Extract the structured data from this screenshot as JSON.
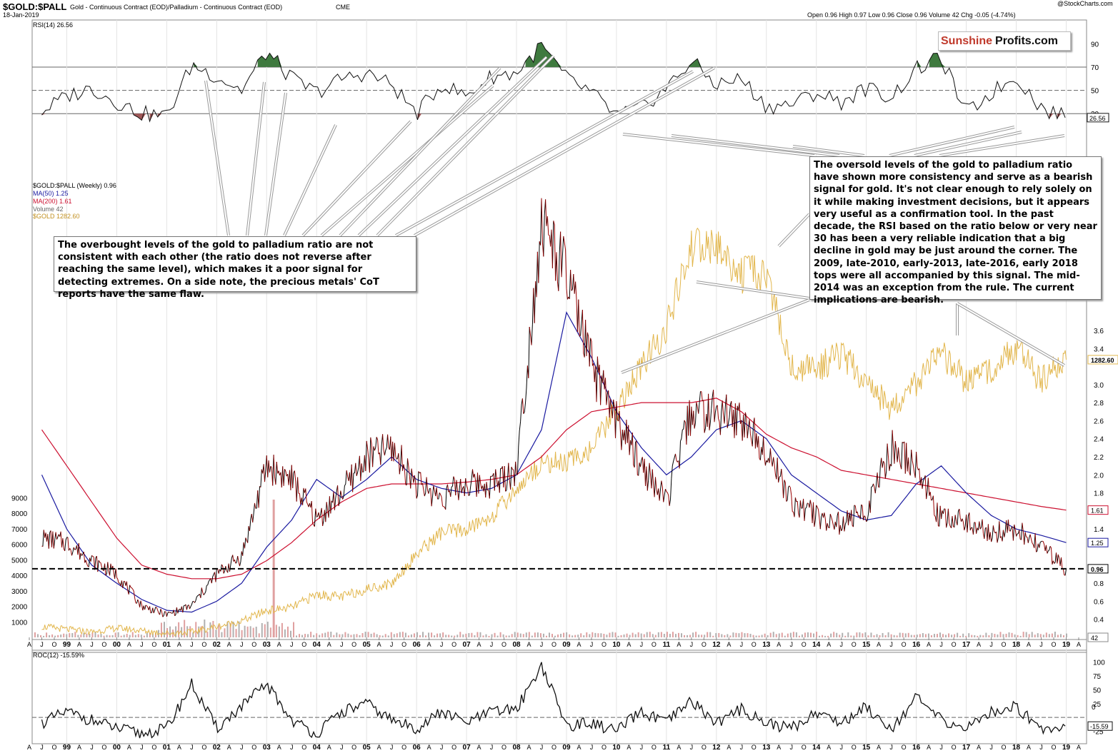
{
  "header": {
    "symbol": "$GOLD:$PALL",
    "description": "Gold - Continuous Contract (EOD)/Palladium - Continuous Contract (EOD)",
    "exchange": "CME",
    "date": "18-Jan-2019",
    "watermark": "@StockCharts.com",
    "ohlc": "Open 0.96  High 0.97  Low 0.96  Close 0.96  Volume 42  Chg -0.05 (-4.74%)"
  },
  "logo": {
    "part1": "Sunshine",
    "part2": "Profits.com"
  },
  "colors": {
    "ratio_up": "#000000",
    "ratio_down": "#990000",
    "ma50": "#1a1aa0",
    "ma200": "#cc1030",
    "gold": "#e2b64c",
    "volume": "#b0b0b0",
    "overbought_fill": "#3f7a3f",
    "oversold_fill": "#a05858"
  },
  "legend": {
    "ratio": "$GOLD:$PALL (Weekly) 0.96",
    "ma50": "MA(50) 1.25",
    "ma200": "MA(200) 1.61",
    "volume": "Volume 42",
    "gold": "$GOLD 1282.60"
  },
  "rsi_label": "RSI(14) 26.56",
  "roc_label": "ROC(12) -15.59%",
  "callouts": {
    "overbought": "The overbought levels of the gold to palladium ratio are not consistent with each other (the ratio does not reverse after reaching the same level), which makes it a poor signal for detecting extremes. On a side note, the precious metals' CoT reports have the same flaw.",
    "oversold": "The oversold levels of the gold to palladium ratio have shown more consistency and serve as a bearish signal for gold. It's not clear enough to rely solely on it while making investment decisions, but it appears very useful as a confirmation tool. In the past decade, the RSI based on the ratio below or very near 30 has been a very reliable indication that a big decline in gold may be just around the corner. The 2009, late-2010, early-2013, late-2016, early 2018 tops were all accompanied by this signal. The mid-2014 was an exception from the rule. The current implications are bearish."
  },
  "chart_data": [
    {
      "type": "line",
      "title": "RSI(14) 26.56",
      "ylim": [
        5,
        100
      ],
      "y_ticks": [
        30,
        50,
        70,
        90
      ],
      "lines": [
        30,
        50,
        70
      ],
      "last_label": "26.56",
      "x": [
        1998.5,
        1999.0,
        1999.5,
        2000.0,
        2000.5,
        2001.0,
        2001.5,
        2002.0,
        2002.5,
        2003.0,
        2003.5,
        2004.0,
        2004.5,
        2005.0,
        2005.5,
        2006.0,
        2006.5,
        2007.0,
        2007.5,
        2008.0,
        2008.5,
        2009.0,
        2009.5,
        2010.0,
        2010.5,
        2011.0,
        2011.5,
        2012.0,
        2012.5,
        2013.0,
        2013.5,
        2014.0,
        2014.5,
        2015.0,
        2015.5,
        2016.0,
        2016.5,
        2017.0,
        2017.5,
        2018.0,
        2018.5,
        2019.0
      ],
      "values": [
        32,
        45,
        52,
        40,
        30,
        28,
        72,
        62,
        50,
        83,
        60,
        48,
        60,
        65,
        55,
        30,
        55,
        45,
        62,
        65,
        88,
        60,
        48,
        28,
        35,
        52,
        75,
        55,
        60,
        36,
        38,
        48,
        40,
        52,
        44,
        68,
        78,
        30,
        48,
        62,
        35,
        26.56
      ]
    },
    {
      "type": "line",
      "title": "$GOLD:$PALL (Weekly) 0.96",
      "ylim": [
        0.2,
        5.6
      ],
      "y_ticks": [
        0.4,
        0.6,
        0.8,
        1.0,
        1.2,
        1.4,
        1.6,
        1.8,
        2.0,
        2.2,
        2.4,
        2.6,
        2.8,
        3.0,
        3.2,
        3.4,
        3.6
      ],
      "y_labels_left": [
        1000,
        2000,
        3000,
        4000,
        5000,
        6000,
        7000,
        8000,
        9000
      ],
      "x_tick_labels": [
        "A",
        "J",
        "O",
        "99",
        "A",
        "J",
        "O",
        "00",
        "A",
        "J",
        "O",
        "01",
        "A",
        "J",
        "O",
        "02",
        "A",
        "J",
        "O",
        "03",
        "A",
        "J",
        "O",
        "04",
        "A",
        "J",
        "O",
        "05",
        "A",
        "J",
        "O",
        "06",
        "A",
        "J",
        "O",
        "07",
        "A",
        "J",
        "O",
        "08",
        "A",
        "J",
        "O",
        "09",
        "A",
        "J",
        "O",
        "10",
        "A",
        "J",
        "O",
        "11",
        "A",
        "J",
        "O",
        "12",
        "A",
        "J",
        "O",
        "13",
        "A",
        "J",
        "O",
        "14",
        "A",
        "J",
        "O",
        "15",
        "A",
        "J",
        "O",
        "16",
        "A",
        "J",
        "O",
        "17",
        "A",
        "J",
        "O",
        "18",
        "A",
        "J",
        "O",
        "19",
        "A"
      ],
      "reference_line": 0.96,
      "last_labels": {
        "gold": "1282.60",
        "ma200": "1.61",
        "ma50": "1.25",
        "ratio": "0.96",
        "volume": "42"
      },
      "x": [
        1998.5,
        1999.0,
        1999.5,
        2000.0,
        2000.5,
        2001.0,
        2001.5,
        2002.0,
        2002.5,
        2003.0,
        2003.5,
        2004.0,
        2004.5,
        2005.0,
        2005.5,
        2006.0,
        2006.5,
        2007.0,
        2007.5,
        2008.0,
        2008.5,
        2009.0,
        2009.5,
        2010.0,
        2010.5,
        2011.0,
        2011.5,
        2012.0,
        2012.5,
        2013.0,
        2013.5,
        2014.0,
        2014.5,
        2015.0,
        2015.5,
        2016.0,
        2016.5,
        2017.0,
        2017.5,
        2018.0,
        2018.5,
        2019.0
      ],
      "series": [
        {
          "name": "$GOLD:$PALL",
          "values": [
            1.3,
            1.25,
            1.05,
            0.9,
            0.55,
            0.45,
            0.55,
            0.9,
            1.1,
            2.1,
            1.95,
            1.5,
            1.8,
            2.2,
            2.3,
            1.9,
            1.75,
            1.9,
            1.9,
            2.05,
            4.8,
            4.2,
            3.2,
            2.6,
            2.1,
            1.7,
            2.7,
            2.7,
            2.6,
            2.3,
            1.7,
            1.55,
            1.45,
            1.6,
            2.3,
            2.1,
            1.5,
            1.5,
            1.35,
            1.4,
            1.2,
            0.96
          ]
        },
        {
          "name": "MA(50)",
          "values": [
            2.0,
            1.4,
            1.0,
            0.8,
            0.62,
            0.5,
            0.48,
            0.6,
            0.8,
            1.2,
            1.5,
            1.95,
            1.75,
            1.95,
            2.2,
            1.95,
            1.85,
            1.8,
            1.85,
            2.0,
            2.5,
            3.8,
            3.3,
            2.7,
            2.3,
            2.0,
            2.2,
            2.5,
            2.6,
            2.4,
            2.0,
            1.8,
            1.6,
            1.5,
            1.55,
            1.9,
            2.1,
            1.8,
            1.55,
            1.4,
            1.33,
            1.25
          ]
        },
        {
          "name": "MA(200)",
          "values": [
            2.5,
            2.1,
            1.7,
            1.3,
            1.0,
            0.9,
            0.85,
            0.85,
            0.9,
            1.05,
            1.25,
            1.5,
            1.7,
            1.85,
            1.9,
            1.9,
            1.9,
            1.92,
            1.95,
            2.0,
            2.2,
            2.5,
            2.7,
            2.75,
            2.8,
            2.8,
            2.8,
            2.85,
            2.7,
            2.45,
            2.3,
            2.2,
            2.05,
            2.0,
            1.95,
            1.9,
            1.85,
            1.8,
            1.75,
            1.7,
            1.65,
            1.61
          ]
        }
      ],
      "gold_overlay": {
        "name": "$GOLD",
        "values": [
          290,
          280,
          270,
          285,
          275,
          265,
          270,
          290,
          310,
          350,
          360,
          410,
          400,
          430,
          450,
          560,
          640,
          650,
          700,
          800,
          900,
          900,
          950,
          1100,
          1250,
          1400,
          1700,
          1700,
          1600,
          1600,
          1250,
          1250,
          1300,
          1200,
          1100,
          1200,
          1300,
          1200,
          1250,
          1330,
          1200,
          1282.6
        ]
      }
    },
    {
      "type": "line",
      "title": "ROC(12) -15.59%",
      "ylim": [
        -45,
        110
      ],
      "y_ticks": [
        -25,
        0,
        25,
        50,
        75,
        100
      ],
      "last_label": "-15.59",
      "x_tick_labels": [
        "A",
        "J",
        "O",
        "99",
        "A",
        "J",
        "O",
        "00",
        "A",
        "J",
        "O",
        "01",
        "A",
        "J",
        "O",
        "02",
        "A",
        "J",
        "O",
        "03",
        "A",
        "J",
        "O",
        "04",
        "A",
        "J",
        "O",
        "05",
        "A",
        "J",
        "O",
        "06",
        "A",
        "J",
        "O",
        "07",
        "A",
        "J",
        "O",
        "08",
        "A",
        "J",
        "O",
        "09",
        "A",
        "J",
        "O",
        "10",
        "A",
        "J",
        "O",
        "11",
        "A",
        "J",
        "O",
        "12",
        "A",
        "J",
        "O",
        "13",
        "A",
        "J",
        "O",
        "14",
        "A",
        "J",
        "O",
        "15",
        "A",
        "J",
        "O",
        "16",
        "A",
        "J",
        "O",
        "17",
        "A",
        "J",
        "O",
        "18",
        "A",
        "J",
        "O",
        "19",
        "A"
      ],
      "x": [
        1998.5,
        1999.0,
        1999.5,
        2000.0,
        2000.5,
        2001.0,
        2001.5,
        2002.0,
        2002.5,
        2003.0,
        2003.5,
        2004.0,
        2004.5,
        2005.0,
        2005.5,
        2006.0,
        2006.5,
        2007.0,
        2007.5,
        2008.0,
        2008.5,
        2009.0,
        2009.5,
        2010.0,
        2010.5,
        2011.0,
        2011.5,
        2012.0,
        2012.5,
        2013.0,
        2013.5,
        2014.0,
        2014.5,
        2015.0,
        2015.5,
        2016.0,
        2016.5,
        2017.0,
        2017.5,
        2018.0,
        2018.5,
        2019.0
      ],
      "values": [
        -10,
        10,
        -5,
        -20,
        -30,
        -20,
        60,
        -20,
        20,
        60,
        -5,
        -30,
        10,
        25,
        -5,
        -20,
        10,
        -10,
        10,
        15,
        95,
        -15,
        -10,
        -25,
        10,
        -10,
        30,
        -10,
        15,
        -10,
        -20,
        10,
        -10,
        20,
        -20,
        35,
        -5,
        -20,
        10,
        20,
        -20,
        -15.59
      ]
    }
  ]
}
